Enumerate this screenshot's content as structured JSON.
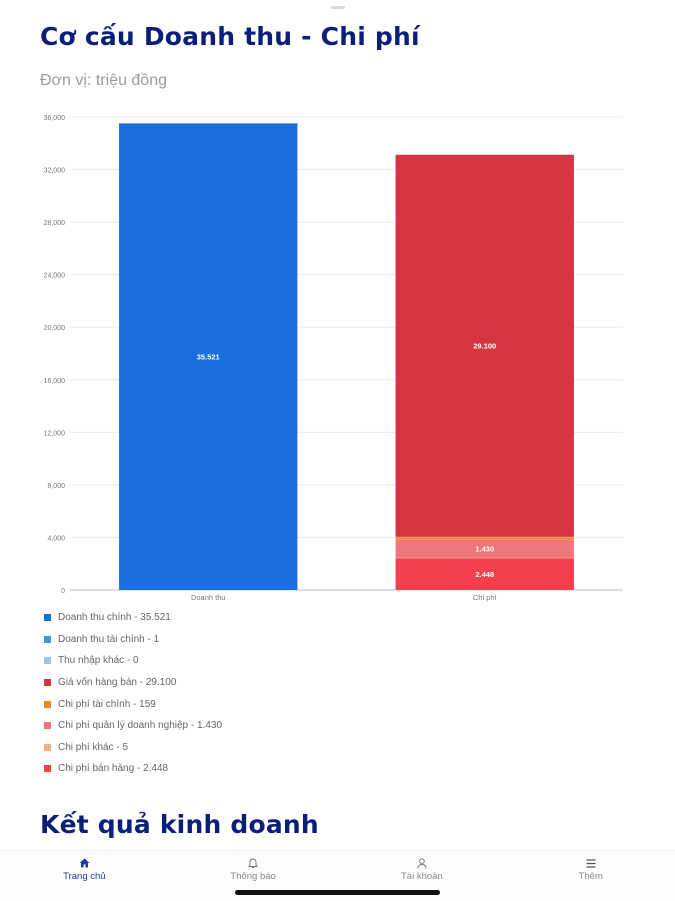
{
  "page": {
    "title": "Cơ cấu Doanh thu - Chi phí",
    "unit_label": "Đơn vị: triệu đồng",
    "section2_title": "Kết quả kinh doanh"
  },
  "chart_data": {
    "type": "bar",
    "stacked": true,
    "categories": [
      "Doanh thu",
      "Chi phí"
    ],
    "ylim": [
      0,
      36000
    ],
    "yticks": [
      "0",
      "4,000",
      "8,000",
      "12,000",
      "16,000",
      "20,000",
      "24,000",
      "28,000",
      "32,000",
      "36,000"
    ],
    "ytick_values": [
      0,
      4000,
      8000,
      12000,
      16000,
      20000,
      24000,
      28000,
      32000,
      36000
    ],
    "grid": true,
    "legend_position": "bottom",
    "series": [
      {
        "name": "Doanh thu chính - 35.521",
        "category": "Doanh thu",
        "value": 35521,
        "label": "35.521",
        "color": "#1a6fde",
        "group": "revenue"
      },
      {
        "name": "Doanh thu tài chính - 1",
        "category": "Doanh thu",
        "value": 1,
        "label": "",
        "color": "#4a8fe8",
        "group": "revenue"
      },
      {
        "name": "Thu nhập khác - 0",
        "category": "Doanh thu",
        "value": 0,
        "label": "",
        "color": "#9cc2f2",
        "group": "revenue"
      },
      {
        "name": "Giá vốn hàng bán - 29.100",
        "category": "Chi phí",
        "value": 29100,
        "label": "29.100",
        "color": "#d33640",
        "group": "cost"
      },
      {
        "name": "Chi phí tài chính - 159",
        "category": "Chi phí",
        "value": 159,
        "label": "",
        "color": "#f08a1c",
        "group": "cost"
      },
      {
        "name": "Chi phí quản lý doanh nghiệp - 1.430",
        "category": "Chi phí",
        "value": 1430,
        "label": "1.430",
        "color": "#f0767e",
        "group": "cost"
      },
      {
        "name": "Chi phí khác - 5",
        "category": "Chi phí",
        "value": 5,
        "label": "",
        "color": "#f7ad7e",
        "group": "cost"
      },
      {
        "name": "Chi phí bán hàng - 2.448",
        "category": "Chi phí",
        "value": 2448,
        "label": "2.448",
        "color": "#f4404c",
        "group": "cost"
      }
    ],
    "cost_stack_order_bottom_to_top": [
      "Chi phí bán hàng - 2.448",
      "Chi phí khác - 5",
      "Chi phí quản lý doanh nghiệp - 1.430",
      "Chi phí tài chính - 159",
      "Giá vốn hàng bán - 29.100"
    ],
    "revenue_stack_order_bottom_to_top": [
      "Doanh thu chính - 35.521",
      "Doanh thu tài chính - 1",
      "Thu nhập khác - 0"
    ]
  },
  "nav": {
    "items": [
      {
        "label": "Trang chủ",
        "icon": "home-icon",
        "active": true
      },
      {
        "label": "Thông báo",
        "icon": "bell-icon",
        "active": false
      },
      {
        "label": "Tài khoản",
        "icon": "user-icon",
        "active": false
      },
      {
        "label": "Thêm",
        "icon": "menu-icon",
        "active": false
      }
    ]
  }
}
